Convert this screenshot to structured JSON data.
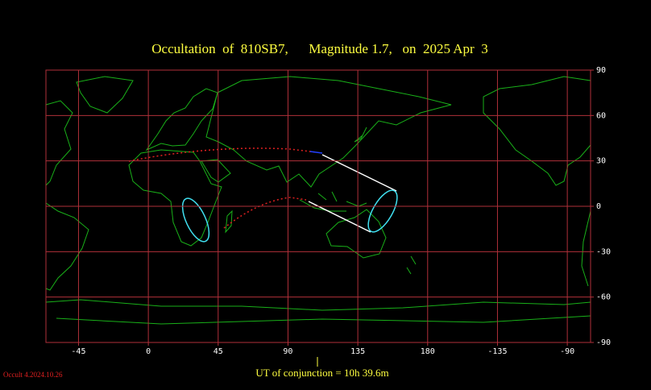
{
  "map": {
    "title": "Occultation  of  810SB7,      Magnitude 1.7,   on  2025 Apr  3",
    "xlim": [
      -66,
      285
    ],
    "ylim": [
      -90,
      90
    ],
    "xticks": [
      -45,
      0,
      45,
      90,
      135,
      180,
      {
        "value": 225,
        "label": "-135"
      },
      {
        "value": 270,
        "label": "-90"
      }
    ],
    "yticks": [
      90,
      60,
      30,
      0,
      -30,
      -60,
      -90
    ],
    "conjunction": "UT of conjunction = 10h 39.6m",
    "version": "Occult 4.2024.10.26"
  }
}
